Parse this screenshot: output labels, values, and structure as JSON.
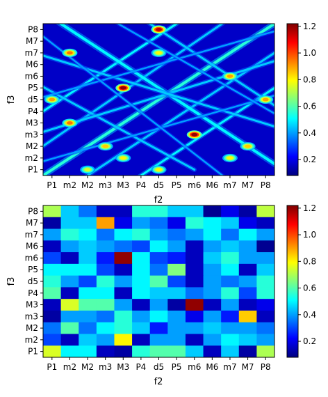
{
  "chart_data": [
    {
      "type": "heatmap",
      "style": "smooth-interpolated",
      "xlabel": "f2",
      "ylabel": "f3",
      "x_ticks": [
        "P1",
        "m2",
        "M2",
        "m3",
        "M3",
        "P4",
        "d5",
        "P5",
        "m6",
        "M6",
        "m7",
        "M7",
        "P8"
      ],
      "y_ticks": [
        "P1",
        "m2",
        "M2",
        "m3",
        "M3",
        "P4",
        "d5",
        "P5",
        "m6",
        "M6",
        "m7",
        "M7",
        "P8"
      ],
      "colorbar": {
        "colormap": "jet",
        "range": [
          0.08,
          1.22
        ],
        "ticks": [
          "0.2",
          "0.4",
          "0.6",
          "0.8",
          "1.0",
          "1.2"
        ]
      },
      "peaks": [
        {
          "x": "d5",
          "y": "P8",
          "value": 1.15
        },
        {
          "x": "m2",
          "y": "m7",
          "value": 0.95
        },
        {
          "x": "M3",
          "y": "P5",
          "value": 1.2
        },
        {
          "x": "m6",
          "y": "m3",
          "value": 1.2
        },
        {
          "x": "m2",
          "y": "M3",
          "value": 0.95
        },
        {
          "x": "P1",
          "y": "d5",
          "value": 0.9
        },
        {
          "x": "P8",
          "y": "d5",
          "value": 0.9
        },
        {
          "x": "m7",
          "y": "m6",
          "value": 0.9
        },
        {
          "x": "d5",
          "y": "m7",
          "value": 0.8
        },
        {
          "x": "m3",
          "y": "M2",
          "value": 0.85
        },
        {
          "x": "M7",
          "y": "M2",
          "value": 0.85
        },
        {
          "x": "d5",
          "y": "P1",
          "value": 0.8
        },
        {
          "x": "M3",
          "y": "m2",
          "value": 0.8
        },
        {
          "x": "m7",
          "y": "m2",
          "value": 0.8
        },
        {
          "x": "M2",
          "y": "P1",
          "value": 0.75
        }
      ]
    },
    {
      "type": "heatmap",
      "style": "discrete",
      "xlabel": "f2",
      "ylabel": "f3",
      "x_ticks": [
        "P1",
        "m2",
        "M2",
        "m3",
        "M3",
        "P4",
        "d5",
        "P5",
        "m6",
        "M6",
        "m7",
        "M7",
        "P8"
      ],
      "y_ticks": [
        "P1",
        "m2",
        "M2",
        "m3",
        "M3",
        "P4",
        "d5",
        "P5",
        "m6",
        "M6",
        "m7",
        "M7",
        "P8"
      ],
      "colorbar": {
        "colormap": "jet",
        "range": [
          0.08,
          1.22
        ],
        "ticks": [
          "0.2",
          "0.4",
          "0.6",
          "0.8",
          "1.0",
          "1.2"
        ]
      },
      "rows_top_to_bottom": [
        "P8",
        "M7",
        "m7",
        "M6",
        "m6",
        "P5",
        "d5",
        "P4",
        "M3",
        "m3",
        "M2",
        "m2",
        "P1"
      ],
      "values": [
        [
          0.7,
          0.45,
          0.35,
          0.15,
          0.15,
          0.55,
          0.55,
          0.45,
          0.45,
          0.1,
          0.2,
          0.12,
          0.72
        ],
        [
          0.12,
          0.45,
          0.45,
          0.9,
          0.2,
          0.4,
          0.35,
          0.2,
          0.55,
          0.5,
          0.45,
          0.2,
          0.15
        ],
        [
          0.4,
          0.55,
          0.5,
          0.35,
          0.5,
          0.55,
          0.4,
          0.35,
          0.4,
          0.5,
          0.35,
          0.5,
          0.4
        ],
        [
          0.15,
          0.4,
          0.45,
          0.4,
          0.35,
          0.3,
          0.5,
          0.4,
          0.15,
          0.4,
          0.45,
          0.4,
          0.1
        ],
        [
          0.3,
          0.15,
          0.45,
          0.25,
          1.2,
          0.5,
          0.3,
          0.25,
          0.15,
          0.45,
          0.55,
          0.4,
          0.4
        ],
        [
          0.5,
          0.5,
          0.5,
          0.3,
          0.15,
          0.5,
          0.35,
          0.65,
          0.15,
          0.4,
          0.5,
          0.15,
          0.45
        ],
        [
          0.55,
          0.4,
          0.3,
          0.55,
          0.4,
          0.5,
          0.6,
          0.3,
          0.15,
          0.4,
          0.35,
          0.4,
          0.55
        ],
        [
          0.6,
          0.15,
          0.5,
          0.5,
          0.15,
          0.5,
          0.45,
          0.45,
          0.35,
          0.4,
          0.55,
          0.3,
          0.55
        ],
        [
          0.15,
          0.75,
          0.6,
          0.6,
          0.4,
          0.15,
          0.4,
          0.12,
          1.2,
          0.15,
          0.4,
          0.15,
          0.2
        ],
        [
          0.12,
          0.4,
          0.4,
          0.35,
          0.55,
          0.4,
          0.5,
          0.4,
          0.2,
          0.4,
          0.25,
          0.85,
          0.15
        ],
        [
          0.35,
          0.6,
          0.35,
          0.5,
          0.55,
          0.45,
          0.25,
          0.4,
          0.4,
          0.45,
          0.4,
          0.4,
          0.35
        ],
        [
          0.3,
          0.15,
          0.45,
          0.4,
          0.8,
          0.15,
          0.4,
          0.4,
          0.15,
          0.4,
          0.5,
          0.45,
          0.4
        ],
        [
          0.75,
          0.5,
          0.5,
          0.15,
          0.12,
          0.55,
          0.6,
          0.6,
          0.45,
          0.15,
          0.45,
          0.12,
          0.7
        ]
      ]
    }
  ]
}
